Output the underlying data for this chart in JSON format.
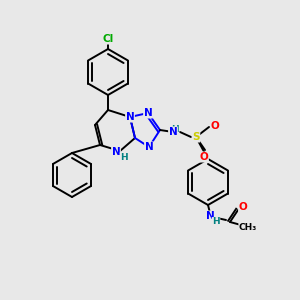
{
  "bg_color": "#e8e8e8",
  "bond_color": "#000000",
  "atom_colors": {
    "N": "#0000ff",
    "O": "#ff0000",
    "S": "#cccc00",
    "Cl": "#00aa00",
    "H": "#008080",
    "C": "#000000"
  },
  "figsize": [
    3.0,
    3.0
  ],
  "dpi": 100
}
